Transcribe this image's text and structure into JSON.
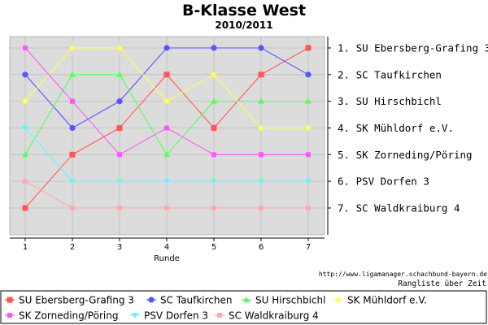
{
  "chart_data": {
    "type": "line",
    "title": "B-Klasse West",
    "subtitle": "2010/2011",
    "xlabel": "Runde",
    "ylabel": "",
    "x": [
      1,
      2,
      3,
      4,
      5,
      6,
      7
    ],
    "ylim": [
      1,
      7
    ],
    "y_inverted": true,
    "grid": true,
    "legend": "bottom",
    "rank_labels": [
      "1. SU Ebersberg-Grafing 3",
      "2. SC Taufkirchen",
      "3. SU Hirschbichl",
      "4. SK Mühldorf e.V.",
      "5. SK Zorneding/Pöring",
      "6. PSV Dorfen 3",
      "7. SC Waldkraiburg 4"
    ],
    "source_url": "http://www.ligamanager.schachbund-bayern.de",
    "footer_note": "Rangliste über Zeit",
    "series": [
      {
        "name": "SU Ebersberg-Grafing 3",
        "color": "#ff5555",
        "marker": "square",
        "values": [
          7,
          5,
          4,
          2,
          4,
          2,
          1
        ]
      },
      {
        "name": "SC Taufkirchen",
        "color": "#5555ff",
        "marker": "circle",
        "values": [
          2,
          4,
          3,
          1,
          1,
          1,
          2
        ]
      },
      {
        "name": "SU Hirschbichl",
        "color": "#55ff55",
        "marker": "triangle-up",
        "values": [
          5,
          2,
          2,
          5,
          3,
          3,
          3
        ]
      },
      {
        "name": "SK Mühldorf e.V.",
        "color": "#ffff55",
        "marker": "diamond",
        "values": [
          3,
          1,
          1,
          3,
          2,
          4,
          4
        ]
      },
      {
        "name": "SK Zorneding/Pöring",
        "color": "#ff55ff",
        "marker": "square-small",
        "values": [
          1,
          3,
          5,
          4,
          5,
          5,
          5
        ]
      },
      {
        "name": "PSV Dorfen 3",
        "color": "#55ffff",
        "marker": "triangle-down",
        "values": [
          4,
          6,
          6,
          6,
          6,
          6,
          6
        ]
      },
      {
        "name": "SC Waldkraiburg 4",
        "color": "#ffaaaa",
        "marker": "square-small",
        "values": [
          6,
          7,
          7,
          7,
          7,
          7,
          7
        ]
      }
    ]
  }
}
